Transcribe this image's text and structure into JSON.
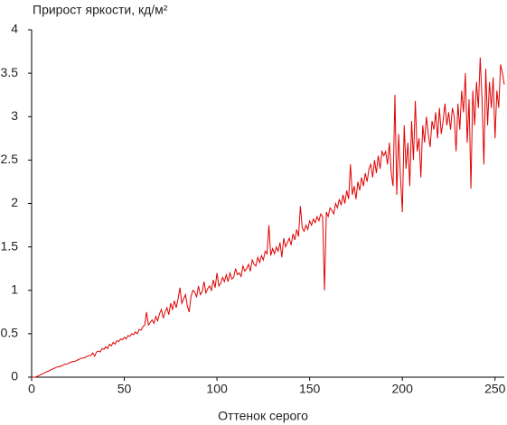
{
  "chart_data": {
    "type": "line",
    "title": "Прирост яркости, кд/м²",
    "x_label": "Оттенок серого",
    "x": [
      0,
      1,
      2,
      3,
      4,
      5,
      6,
      7,
      8,
      9,
      10,
      11,
      12,
      13,
      14,
      15,
      16,
      17,
      18,
      19,
      20,
      21,
      22,
      23,
      24,
      25,
      26,
      27,
      28,
      29,
      30,
      31,
      32,
      33,
      34,
      35,
      36,
      37,
      38,
      39,
      40,
      41,
      42,
      43,
      44,
      45,
      46,
      47,
      48,
      49,
      50,
      51,
      52,
      53,
      54,
      55,
      56,
      57,
      58,
      59,
      60,
      61,
      62,
      63,
      64,
      65,
      66,
      67,
      68,
      69,
      70,
      71,
      72,
      73,
      74,
      75,
      76,
      77,
      78,
      79,
      80,
      81,
      82,
      83,
      84,
      85,
      86,
      87,
      88,
      89,
      90,
      91,
      92,
      93,
      94,
      95,
      96,
      97,
      98,
      99,
      100,
      101,
      102,
      103,
      104,
      105,
      106,
      107,
      108,
      109,
      110,
      111,
      112,
      113,
      114,
      115,
      116,
      117,
      118,
      119,
      120,
      121,
      122,
      123,
      124,
      125,
      126,
      127,
      128,
      129,
      130,
      131,
      132,
      133,
      134,
      135,
      136,
      137,
      138,
      139,
      140,
      141,
      142,
      143,
      144,
      145,
      146,
      147,
      148,
      149,
      150,
      151,
      152,
      153,
      154,
      155,
      156,
      157,
      158,
      159,
      160,
      161,
      162,
      163,
      164,
      165,
      166,
      167,
      168,
      169,
      170,
      171,
      172,
      173,
      174,
      175,
      176,
      177,
      178,
      179,
      180,
      181,
      182,
      183,
      184,
      185,
      186,
      187,
      188,
      189,
      190,
      191,
      192,
      193,
      194,
      195,
      196,
      197,
      198,
      199,
      200,
      201,
      202,
      203,
      204,
      205,
      206,
      207,
      208,
      209,
      210,
      211,
      212,
      213,
      214,
      215,
      216,
      217,
      218,
      219,
      220,
      221,
      222,
      223,
      224,
      225,
      226,
      227,
      228,
      229,
      230,
      231,
      232,
      233,
      234,
      235,
      236,
      237,
      238,
      239,
      240,
      241,
      242,
      243,
      244,
      245,
      246,
      247,
      248,
      249,
      250,
      251,
      252,
      253,
      254,
      255
    ],
    "series": [
      {
        "color": "#e00000",
        "values": [
          0,
          0,
          0,
          0.01,
          0.02,
          0.03,
          0.04,
          0.05,
          0.06,
          0.07,
          0.08,
          0.09,
          0.1,
          0.11,
          0.12,
          0.12,
          0.13,
          0.14,
          0.15,
          0.15,
          0.16,
          0.17,
          0.18,
          0.18,
          0.19,
          0.2,
          0.21,
          0.22,
          0.22,
          0.23,
          0.24,
          0.25,
          0.25,
          0.28,
          0.24,
          0.29,
          0.3,
          0.29,
          0.33,
          0.32,
          0.35,
          0.33,
          0.38,
          0.36,
          0.4,
          0.38,
          0.42,
          0.41,
          0.44,
          0.43,
          0.46,
          0.44,
          0.48,
          0.47,
          0.5,
          0.49,
          0.52,
          0.5,
          0.55,
          0.54,
          0.58,
          0.6,
          0.75,
          0.6,
          0.63,
          0.66,
          0.62,
          0.7,
          0.65,
          0.73,
          0.78,
          0.68,
          0.75,
          0.8,
          0.72,
          0.85,
          0.78,
          0.88,
          0.8,
          0.9,
          1.03,
          0.85,
          0.9,
          0.95,
          0.82,
          0.75,
          0.93,
          1.0,
          0.98,
          0.92,
          1.05,
          0.95,
          0.98,
          1.1,
          0.97,
          1.02,
          1.05,
          1.0,
          1.12,
          1.03,
          1.2,
          1.05,
          1.08,
          1.15,
          1.1,
          1.18,
          1.1,
          1.2,
          1.13,
          1.15,
          1.25,
          1.18,
          1.2,
          1.16,
          1.28,
          1.22,
          1.25,
          1.3,
          1.22,
          1.35,
          1.3,
          1.28,
          1.38,
          1.32,
          1.4,
          1.35,
          1.45,
          1.42,
          1.75,
          1.4,
          1.48,
          1.42,
          1.5,
          1.45,
          1.55,
          1.38,
          1.6,
          1.5,
          1.55,
          1.6,
          1.52,
          1.65,
          1.58,
          1.7,
          1.62,
          1.97,
          1.72,
          1.68,
          1.75,
          1.7,
          1.8,
          1.75,
          1.82,
          1.78,
          1.85,
          1.8,
          1.88,
          1.85,
          1.0,
          1.9,
          1.85,
          1.95,
          1.92,
          1.88,
          2.0,
          1.95,
          2.05,
          1.98,
          2.1,
          2.0,
          2.15,
          2.05,
          2.45,
          2.1,
          2.2,
          2.05,
          2.25,
          2.15,
          2.3,
          2.2,
          2.35,
          2.25,
          2.4,
          2.45,
          2.3,
          2.5,
          2.35,
          2.55,
          2.4,
          2.6,
          2.55,
          2.6,
          2.45,
          2.7,
          2.35,
          2.2,
          3.25,
          2.1,
          2.8,
          2.3,
          1.9,
          2.9,
          2.4,
          2.7,
          2.2,
          2.95,
          2.5,
          3.18,
          2.6,
          2.75,
          2.3,
          2.9,
          2.7,
          3.0,
          2.8,
          2.65,
          2.95,
          2.85,
          3.05,
          2.75,
          3.1,
          2.8,
          2.95,
          3.15,
          2.9,
          3.05,
          2.85,
          3.1,
          3.0,
          2.6,
          3.15,
          2.85,
          3.3,
          3.05,
          3.5,
          2.7,
          3.2,
          2.17,
          3.3,
          2.9,
          3.4,
          3.1,
          3.68,
          3.2,
          2.45,
          3.55,
          2.9,
          3.4,
          3.1,
          3.45,
          2.75,
          3.3,
          3.1,
          3.6,
          3.5,
          3.37
        ]
      }
    ],
    "xlim": [
      0,
      255
    ],
    "xticks": [
      0,
      50,
      100,
      150,
      200,
      250
    ],
    "ylim": [
      0,
      4
    ],
    "yticks": [
      0,
      0.5,
      1,
      1.5,
      2,
      2.5,
      3,
      3.5,
      4
    ]
  }
}
